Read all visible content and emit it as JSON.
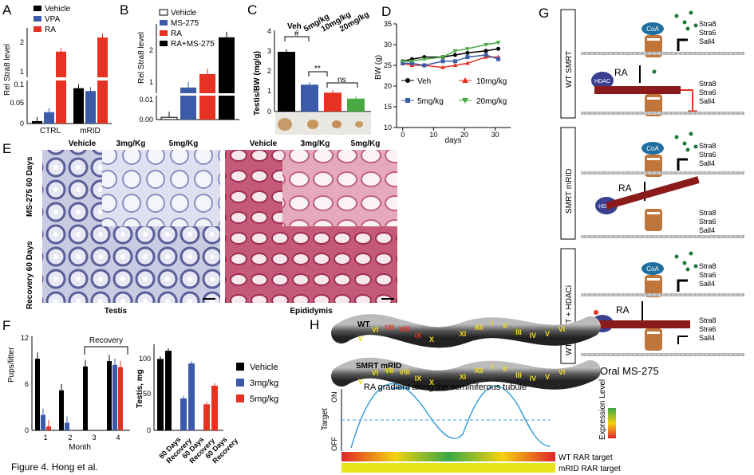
{
  "figure": {
    "caption": "Figure 4.  Hong et al."
  },
  "colors": {
    "vehicle": "#000000",
    "vpa": "#3b5ba9",
    "ra": "#e53222",
    "green": "#49a942",
    "hdac": "#3a3f8f",
    "coa": "#1f6fa0",
    "rid": "#8b1a1a",
    "dna": "#b0b0b0",
    "ra_gradient": "#3aa0d8"
  },
  "panels": {
    "A": {
      "letter": "A",
      "legend": [
        "Vehicle",
        "VPA",
        "RA"
      ],
      "ylabel": "Rel Stra8 level",
      "yticks_upper": [
        "2",
        "1"
      ],
      "yticks_lower": [
        "0.1",
        "0.05",
        "0"
      ],
      "xlabels": [
        "CTRL",
        "mRID"
      ]
    },
    "B": {
      "letter": "B",
      "legend": [
        "Vehicle",
        "MS-275",
        "RA",
        "RA+MS-275"
      ],
      "ylabel": "Rel Stra8 level",
      "yticks_upper": [
        "2",
        "1"
      ],
      "yticks_lower": [
        "0.01",
        "0.00"
      ]
    },
    "C": {
      "letter": "C",
      "ylabel": "Testis/BW (mg/g)",
      "groups": [
        "Veh",
        "5mg/kg",
        "10mg/kg",
        "20mg/kg"
      ],
      "yticks": [
        "4",
        "3",
        "2",
        "1",
        "0"
      ],
      "sig_hash": "#",
      "sig_stars": "**",
      "sig_ns": "ns"
    },
    "D": {
      "letter": "D",
      "ylabel": "BW (g)",
      "xlabel": "days",
      "yticks": [
        "35",
        "30",
        "25",
        "20",
        "15",
        "10"
      ],
      "xticks": [
        "0",
        "10",
        "20",
        "30"
      ],
      "legend": [
        "Veh",
        "10mg/kg",
        "5mg/kg",
        "20mg/kg"
      ]
    },
    "E": {
      "letter": "E",
      "col_headers": [
        "Vehicle",
        "3mg/Kg",
        "5mg/Kg",
        "Vehicle",
        "3mg/Kg",
        "5mg/Kg"
      ],
      "row_labels": [
        "MS-275 60 Days",
        "Recovery 60 Days"
      ],
      "tissue_labels": [
        "Testis",
        "Epididymis"
      ]
    },
    "F": {
      "letter": "F",
      "ylabel_left": "Pups/litter",
      "xlabel_left": "Month",
      "recovery_label": "Recovery",
      "yticks_left": [
        "12",
        "6",
        "0"
      ],
      "xticks_left": [
        "1",
        "2",
        "3",
        "4"
      ],
      "ylabel_right": "Testis, mg",
      "yticks_right": [
        "100",
        "50",
        "0"
      ],
      "xlabels_right": [
        "60 Days",
        "Recovery",
        "60 Days",
        "Recovery",
        "60 Days",
        "Recovery"
      ],
      "legend": [
        "Vehicle",
        "3mg/kg",
        "5mg/kg"
      ]
    },
    "G": {
      "letter": "G",
      "row_labels": [
        "WT SMRT",
        "SMRT mRID",
        "WT SMRT + HDACi"
      ],
      "genes": [
        "Stra8",
        "Stra6",
        "Sall4"
      ],
      "ra": "RA",
      "coa": "CoA",
      "hdac": "HDAC",
      "rid": "RID",
      "footer": "Oral MS-275"
    },
    "H": {
      "letter": "H",
      "strand_wt": "WT",
      "strand_mrid": "SMRT mRID",
      "stages": [
        "V",
        "VI",
        "VII",
        "VIII",
        "IX",
        "X",
        "XI",
        "XII",
        "I",
        "II",
        "III",
        "IV",
        "V",
        "VI"
      ],
      "yaxis": "Target",
      "on": "ON",
      "off": "OFF",
      "gradient_label": "RA gradient along the seminiferous tubule",
      "expression_label": "Expression Level",
      "bar_wt": "WT RAR target",
      "bar_mrid": "mRID RAR target"
    }
  },
  "chart_data": [
    {
      "panel": "A",
      "type": "bar",
      "title": "",
      "ylabel": "Rel. Stra8 level",
      "categories": [
        "CTRL",
        "mRID"
      ],
      "series": [
        {
          "name": "Vehicle",
          "values": [
            0.006,
            0.5
          ]
        },
        {
          "name": "VPA",
          "values": [
            0.028,
            0.4
          ]
        },
        {
          "name": "RA",
          "values": [
            1.8,
            2.3
          ]
        }
      ]
    },
    {
      "panel": "B",
      "type": "bar",
      "ylabel": "Rel. Stra8 level",
      "categories": [
        "treatment"
      ],
      "series": [
        {
          "name": "Vehicle",
          "values": [
            0.001
          ]
        },
        {
          "name": "MS-275",
          "values": [
            0.6
          ]
        },
        {
          "name": "RA",
          "values": [
            1.0
          ]
        },
        {
          "name": "RA+MS-275",
          "values": [
            2.1
          ]
        }
      ]
    },
    {
      "panel": "C",
      "type": "bar",
      "ylabel": "Testis/BW (mg/g)",
      "ylim": [
        0,
        4
      ],
      "categories": [
        "Veh",
        "5mg/kg",
        "10mg/kg",
        "20mg/kg"
      ],
      "values": [
        3.0,
        1.35,
        0.95,
        0.65
      ]
    },
    {
      "panel": "D",
      "type": "line",
      "xlabel": "days",
      "ylabel": "BW (g)",
      "ylim": [
        10,
        35
      ],
      "xlim": [
        -2,
        35
      ],
      "x": [
        0,
        3,
        7,
        13,
        17,
        21,
        27,
        31
      ],
      "series": [
        {
          "name": "Veh",
          "values": [
            26,
            26.5,
            27,
            27,
            27.5,
            28,
            28.5,
            29
          ]
        },
        {
          "name": "10mg/kg",
          "values": [
            25.5,
            25,
            25,
            24.5,
            25,
            25.5,
            27,
            27
          ]
        },
        {
          "name": "5mg/kg",
          "values": [
            25.5,
            25.5,
            25,
            26,
            26,
            27,
            27.5,
            26.5
          ]
        },
        {
          "name": "20mg/kg",
          "values": [
            26,
            26,
            26.5,
            27,
            28.5,
            29,
            30,
            30.5
          ]
        }
      ]
    },
    {
      "panel": "F-left",
      "type": "bar",
      "xlabel": "Month",
      "ylabel": "Pups/litter",
      "ylim": [
        0,
        12
      ],
      "categories": [
        "1",
        "2",
        "3",
        "4"
      ],
      "series": [
        {
          "name": "Vehicle",
          "values": [
            9.3,
            5.2,
            8.3,
            9
          ]
        },
        {
          "name": "3mg/kg",
          "values": [
            2,
            1,
            0,
            8.5
          ]
        },
        {
          "name": "5mg/kg",
          "values": [
            0.5,
            0,
            0,
            8.2
          ]
        }
      ]
    },
    {
      "panel": "F-right",
      "type": "bar",
      "ylabel": "Testis, mg",
      "ylim": [
        0,
        120
      ],
      "categories": [
        "60 Days",
        "Recovery"
      ],
      "series": [
        {
          "name": "Vehicle",
          "values": [
            96,
            107
          ]
        },
        {
          "name": "3mg/kg",
          "values": [
            43,
            90
          ]
        },
        {
          "name": "5mg/kg",
          "values": [
            35,
            60
          ]
        }
      ]
    }
  ]
}
